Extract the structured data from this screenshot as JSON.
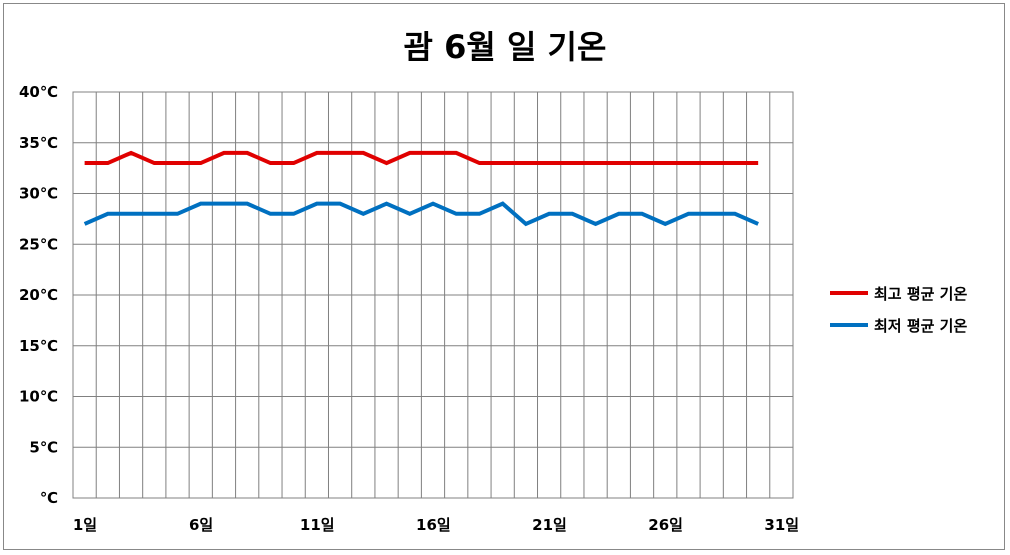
{
  "chart_data": {
    "type": "line",
    "title": "괌 6월 일 기온",
    "xlabel": "",
    "ylabel": "",
    "ylim": [
      0,
      40
    ],
    "y_ticks": [
      0,
      5,
      10,
      15,
      20,
      25,
      30,
      35,
      40
    ],
    "y_tick_labels": [
      "℃",
      "5℃",
      "10℃",
      "15℃",
      "20℃",
      "25℃",
      "30℃",
      "35℃",
      "40℃"
    ],
    "x_ticks": [
      1,
      6,
      11,
      16,
      21,
      26,
      31
    ],
    "x_tick_labels": [
      "1일",
      "6일",
      "11일",
      "16일",
      "21일",
      "26일",
      "31일"
    ],
    "x": [
      1,
      2,
      3,
      4,
      5,
      6,
      7,
      8,
      9,
      10,
      11,
      12,
      13,
      14,
      15,
      16,
      17,
      18,
      19,
      20,
      21,
      22,
      23,
      24,
      25,
      26,
      27,
      28,
      29,
      30
    ],
    "grid": true,
    "legend_position": "right",
    "series": [
      {
        "name": "최고 평균 기온",
        "color": "#e00000",
        "values": [
          33,
          33,
          34,
          33,
          33,
          33,
          34,
          34,
          33,
          33,
          34,
          34,
          34,
          33,
          34,
          34,
          34,
          33,
          33,
          33,
          33,
          33,
          33,
          33,
          33,
          33,
          33,
          33,
          33,
          33
        ]
      },
      {
        "name": "최저 평균 기온",
        "color": "#0070c0",
        "values": [
          27,
          28,
          28,
          28,
          28,
          29,
          29,
          29,
          28,
          28,
          29,
          29,
          28,
          29,
          28,
          29,
          28,
          28,
          29,
          27,
          28,
          28,
          27,
          28,
          28,
          27,
          28,
          28,
          28,
          27
        ]
      }
    ]
  }
}
